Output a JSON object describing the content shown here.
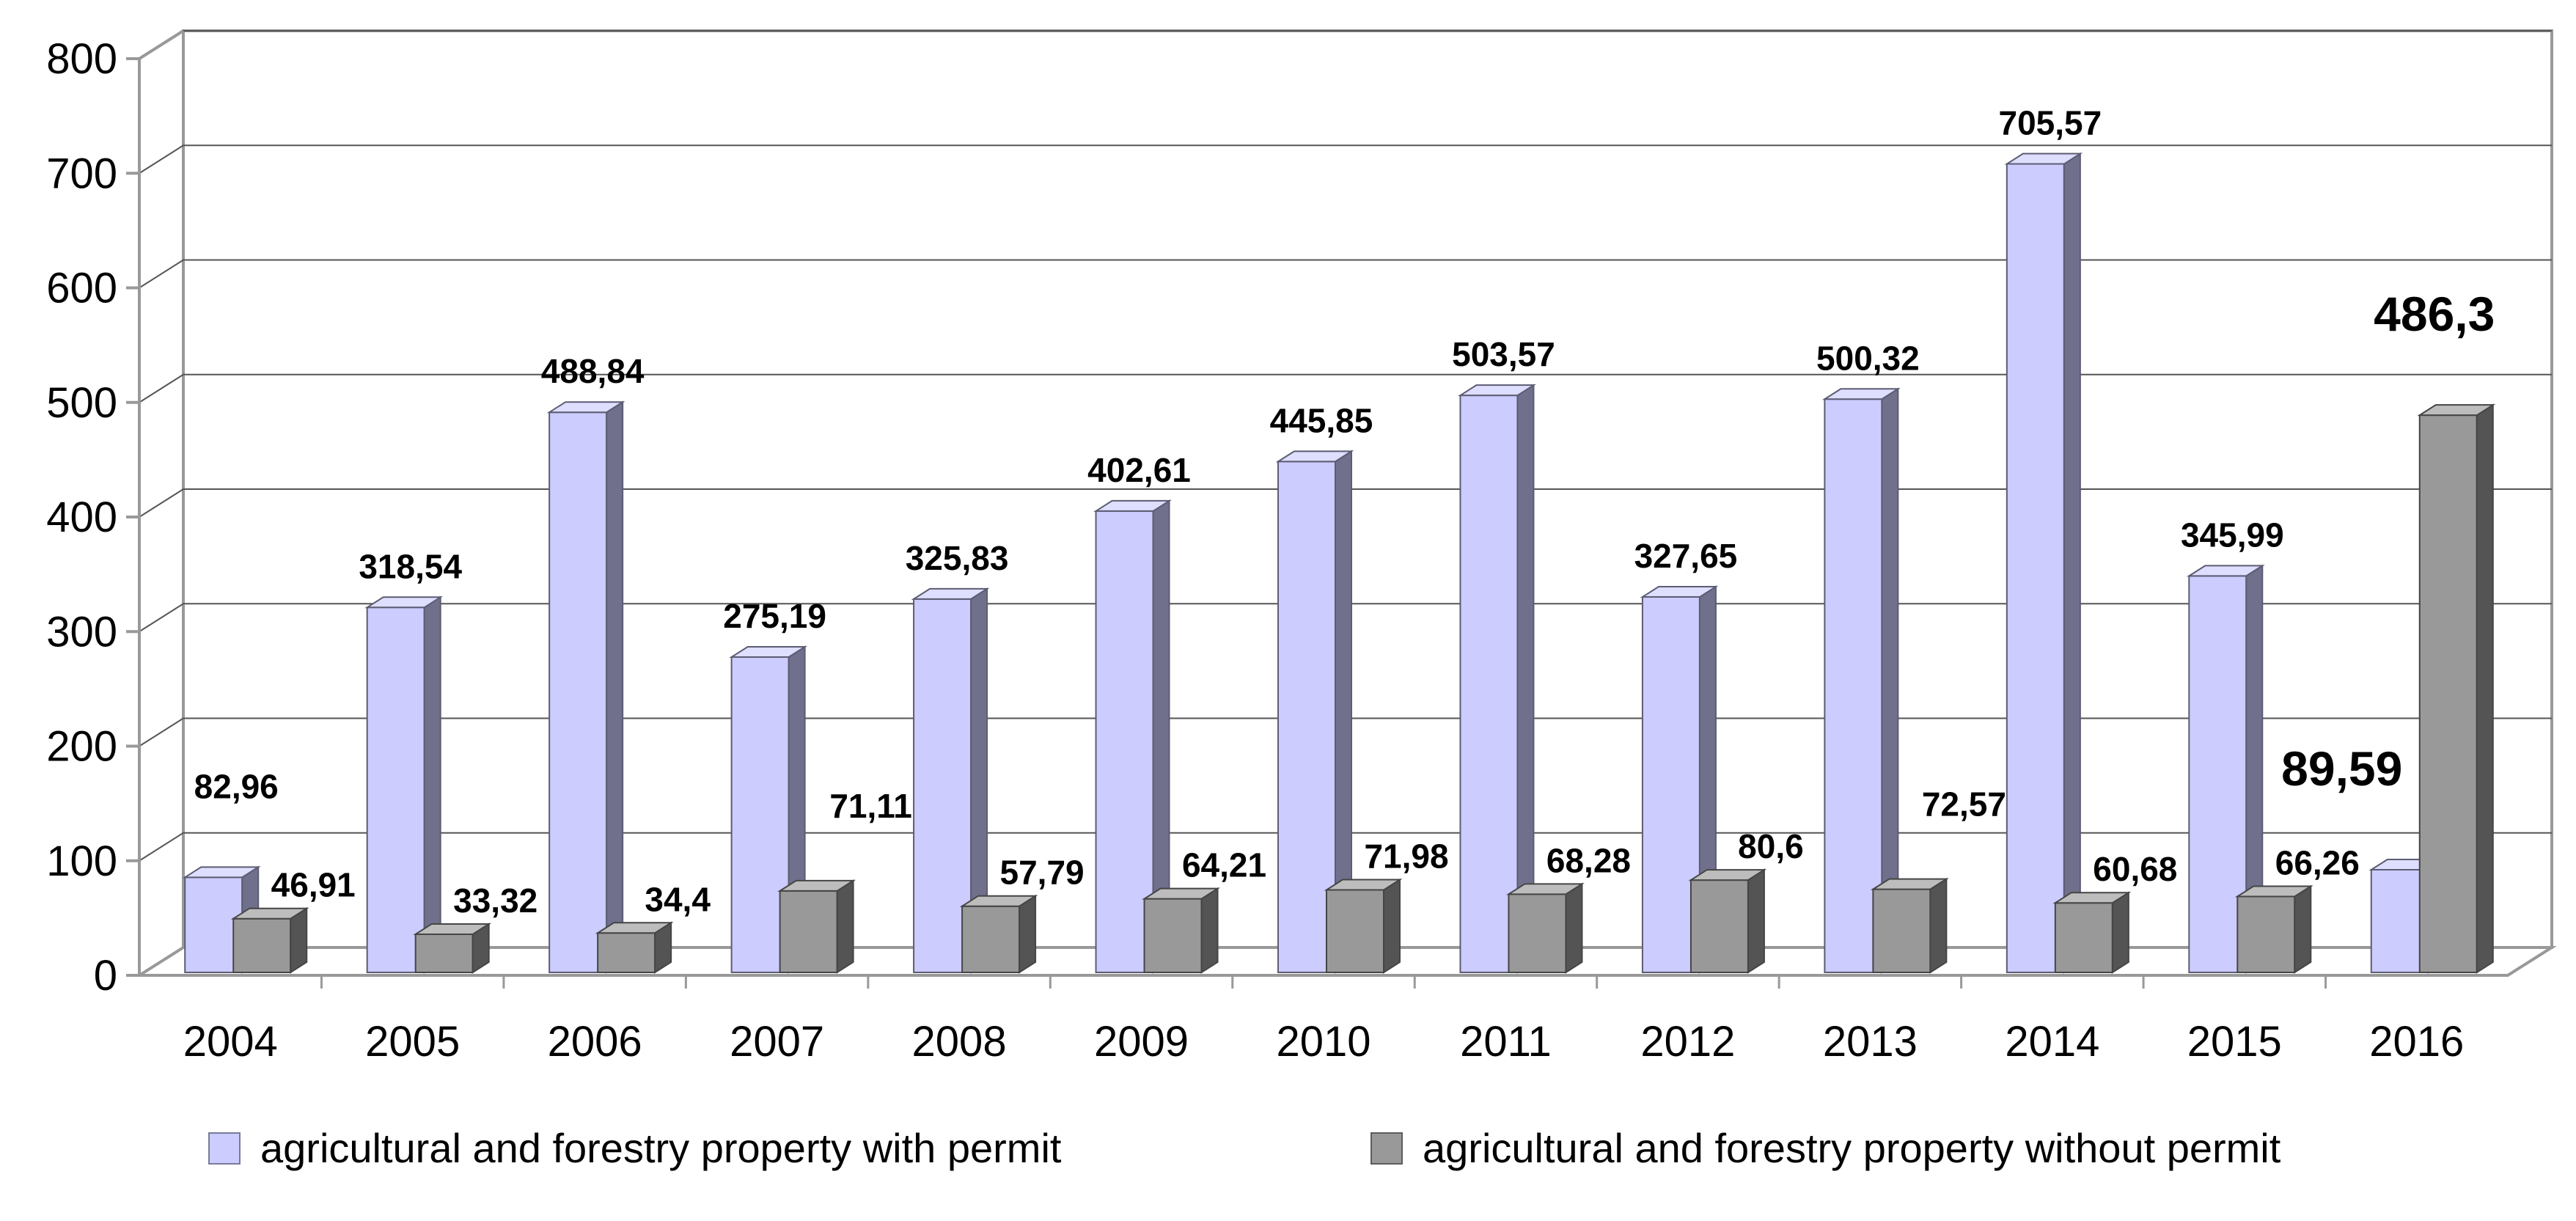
{
  "chart_data": {
    "type": "bar",
    "title": "",
    "xlabel": "",
    "ylabel": "",
    "ylim": [
      0,
      800
    ],
    "yticks": [
      0,
      100,
      200,
      300,
      400,
      500,
      600,
      700,
      800
    ],
    "grid": true,
    "legend_position": "bottom",
    "categories": [
      "2004",
      "2005",
      "2006",
      "2007",
      "2008",
      "2009",
      "2010",
      "2011",
      "2012",
      "2013",
      "2014",
      "2015",
      "2016"
    ],
    "series": [
      {
        "name": "agricultural and forestry property with permit",
        "color": "#ccccff",
        "values": [
          82.96,
          318.54,
          488.84,
          275.19,
          325.83,
          402.61,
          445.85,
          503.57,
          327.65,
          500.32,
          705.57,
          345.99,
          89.59
        ],
        "labels": [
          "82,96",
          "318,54",
          "488,84",
          "275,19",
          "325,83",
          "402,61",
          "445,85",
          "503,57",
          "327,65",
          "500,32",
          "705,57",
          "345,99",
          "89,59"
        ]
      },
      {
        "name": "agricultural and forestry property without permit",
        "color": "#999999",
        "values": [
          46.91,
          33.32,
          34.4,
          71.11,
          57.79,
          64.21,
          71.98,
          68.28,
          80.6,
          72.57,
          60.68,
          66.26,
          486.3
        ],
        "labels": [
          "46,91",
          "33,32",
          "34,4",
          "71,11",
          "57,79",
          "64,21",
          "71,98",
          "68,28",
          "80,6",
          "72,57",
          "60,68",
          "66,26",
          "486,3"
        ]
      }
    ]
  }
}
